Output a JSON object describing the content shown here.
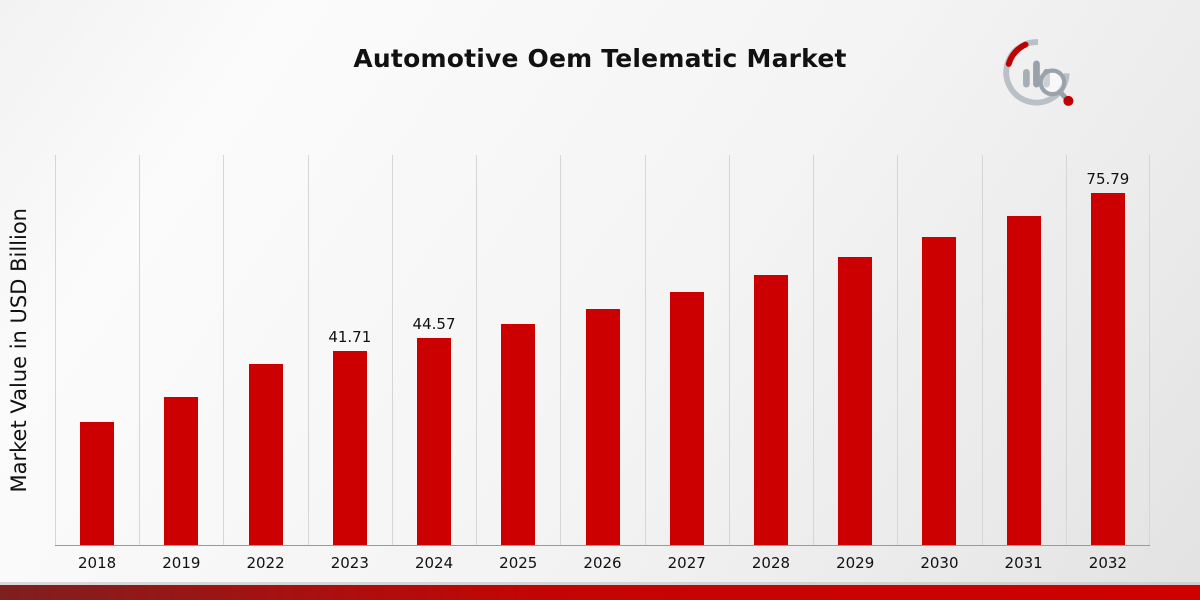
{
  "title": "Automotive Oem Telematic Market",
  "ylabel": "Market Value in USD Billion",
  "colors": {
    "bar": "#cc0001",
    "footer_dark": "#7e1f1f",
    "footer_bright": "#d00000",
    "gridline": "#d6d6d6"
  },
  "chart_data": {
    "type": "bar",
    "categories": [
      "2018",
      "2019",
      "2022",
      "2023",
      "2024",
      "2025",
      "2026",
      "2027",
      "2028",
      "2029",
      "2030",
      "2031",
      "2032"
    ],
    "values": [
      26.5,
      31.8,
      38.9,
      41.71,
      44.57,
      47.6,
      50.9,
      54.4,
      58.1,
      62.1,
      66.4,
      70.9,
      75.79
    ],
    "labels": [
      null,
      null,
      null,
      "41.71",
      "44.57",
      null,
      null,
      null,
      null,
      null,
      null,
      null,
      "75.79"
    ],
    "title": "Automotive Oem Telematic Market",
    "xlabel": "",
    "ylabel": "Market Value in USD Billion",
    "ylim": [
      0,
      84
    ],
    "grid": "vertical",
    "legend": "none",
    "bar_color": "#cc0001"
  }
}
